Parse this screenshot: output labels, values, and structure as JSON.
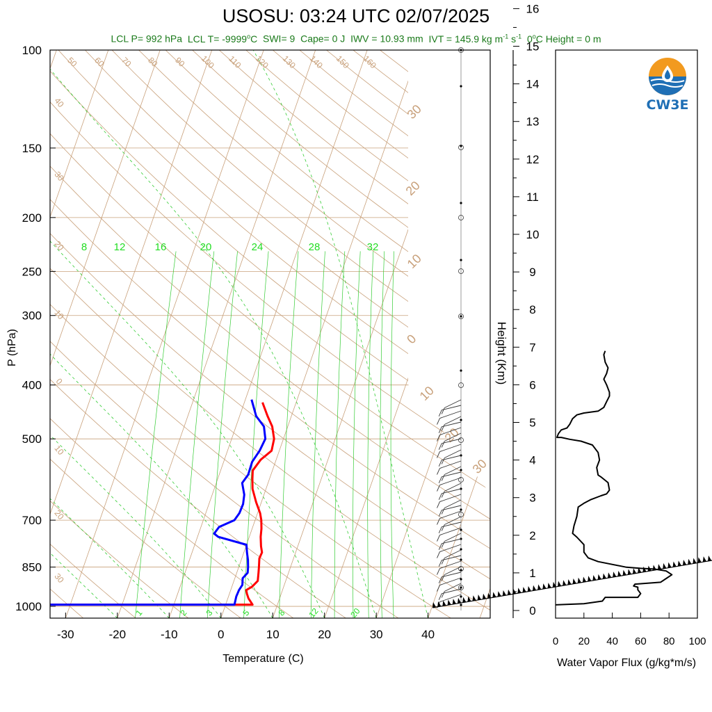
{
  "header": {
    "title": "USOSU: 03:24 UTC 02/07/2025",
    "lcl_p": "LCL P= 992 hPa",
    "lcl_t_prefix": "LCL T= -9999",
    "lcl_t_unit": "C",
    "swi": "SWI= 9",
    "cape": "Cape= 0 J",
    "iwv": "IWV = 10.93 mm",
    "ivt_prefix": "IVT = 145.9 kg m",
    "ivt_sup1": "-1",
    "ivt_mid": " s",
    "ivt_sup2": "-1",
    "zero_height": "0",
    "zero_height_rest": "C Height = 0 m"
  },
  "logo": {
    "text": "CW3E",
    "icon": "water-drop-sun-logo-icon",
    "colors": {
      "sun": "#f29a1f",
      "water": "#1f6fb5"
    }
  },
  "colors": {
    "temperature": "#ff0000",
    "dewpoint": "#0000ff",
    "isotherm": "#c8a07a",
    "mixing_ratio": "#33cc33",
    "subtitle": "#1a7a1a"
  },
  "chart_data": [
    {
      "type": "line",
      "subtype": "skew-t",
      "xlabel": "Temperature (C)",
      "ylabel": "P (hPa)",
      "xlim": [
        -33,
        52
      ],
      "ylim": [
        1050,
        100
      ],
      "yscale": "log",
      "x_ticks": [
        "-30",
        "-20",
        "-10",
        "0",
        "10",
        "20",
        "30",
        "40"
      ],
      "y_ticks": [
        "100",
        "150",
        "200",
        "250",
        "300",
        "400",
        "500",
        "700",
        "850",
        "1000"
      ],
      "dry_adiabat_labels": [
        "50",
        "60",
        "70",
        "80",
        "90",
        "100",
        "110",
        "120",
        "130",
        "140",
        "150",
        "160"
      ],
      "skewed_isotherm_labels": [
        "40",
        "30",
        "20",
        "10",
        "0",
        "10",
        "20",
        "30"
      ],
      "right_labels": [
        "30",
        "20",
        "10",
        "0",
        "10",
        "20",
        "30"
      ],
      "mixing_ratio_top_labels": [
        "8",
        "12",
        "16",
        "20",
        "24",
        "28",
        "32"
      ],
      "mixing_ratio_bottom_labels": [
        "1",
        "2",
        "3",
        "5",
        "8",
        "12",
        "20"
      ],
      "series": [
        {
          "name": "temperature",
          "points": [
            [
              -35.0,
              993
            ],
            [
              5.2,
              993
            ],
            [
              4.0,
              968
            ],
            [
              3.4,
              950
            ],
            [
              3.0,
              935
            ],
            [
              3.9,
              922
            ],
            [
              4.6,
              900
            ],
            [
              4.2,
              870
            ],
            [
              3.9,
              850
            ],
            [
              3.4,
              820
            ],
            [
              3.5,
              800
            ],
            [
              2.9,
              780
            ],
            [
              2.2,
              750
            ],
            [
              1.8,
              725
            ],
            [
              1.2,
              700
            ],
            [
              0.5,
              680
            ],
            [
              -1.0,
              650
            ],
            [
              -2.6,
              615
            ],
            [
              -3.3,
              590
            ],
            [
              -3.8,
              570
            ],
            [
              -3.0,
              545
            ],
            [
              -1.5,
              525
            ],
            [
              -1.8,
              500
            ],
            [
              -3.0,
              475
            ],
            [
              -4.6,
              455
            ],
            [
              -6.5,
              430
            ]
          ]
        },
        {
          "name": "dewpoint",
          "points": [
            [
              -35.0,
              993
            ],
            [
              1.7,
              993
            ],
            [
              1.5,
              960
            ],
            [
              1.6,
              935
            ],
            [
              1.9,
              915
            ],
            [
              1.5,
              890
            ],
            [
              2.1,
              870
            ],
            [
              1.8,
              850
            ],
            [
              1.3,
              825
            ],
            [
              0.6,
              800
            ],
            [
              0.0,
              775
            ],
            [
              -6.0,
              750
            ],
            [
              -7.0,
              740
            ],
            [
              -6.5,
              720
            ],
            [
              -4.0,
              700
            ],
            [
              -3.5,
              680
            ],
            [
              -3.4,
              655
            ],
            [
              -3.8,
              630
            ],
            [
              -5.0,
              600
            ],
            [
              -4.4,
              580
            ],
            [
              -4.5,
              550
            ],
            [
              -3.8,
              525
            ],
            [
              -3.5,
              500
            ],
            [
              -4.6,
              475
            ],
            [
              -6.8,
              455
            ],
            [
              -8.8,
              425
            ]
          ]
        }
      ]
    },
    {
      "type": "line",
      "subtype": "wind-profile",
      "ylabel": "Height (Km)",
      "ylim": [
        -0.2,
        16.5
      ],
      "y_ticks": [
        "0",
        "1",
        "2",
        "3",
        "4",
        "5",
        "6",
        "7",
        "8",
        "9",
        "10",
        "11",
        "12",
        "13",
        "14",
        "15",
        "16"
      ]
    },
    {
      "type": "line",
      "xlabel": "Water Vapor Flux (g/kg*m/s)",
      "xlim": [
        0,
        100
      ],
      "ylim": [
        -0.2,
        16.5
      ],
      "x_ticks": [
        "0",
        "20",
        "40",
        "60",
        "80",
        "100"
      ],
      "series": [
        {
          "name": "water_vapor_flux",
          "points": [
            [
              0,
              0.15
            ],
            [
              20,
              0.18
            ],
            [
              33,
              0.25
            ],
            [
              35,
              0.35
            ],
            [
              58,
              0.35
            ],
            [
              60,
              0.45
            ],
            [
              58,
              0.55
            ],
            [
              58,
              0.62
            ],
            [
              55,
              0.65
            ],
            [
              56,
              0.7
            ],
            [
              74,
              0.75
            ],
            [
              78,
              0.85
            ],
            [
              82,
              0.95
            ],
            [
              78,
              1.05
            ],
            [
              70,
              1.1
            ],
            [
              60,
              1.12
            ],
            [
              50,
              1.15
            ],
            [
              30,
              1.3
            ],
            [
              23,
              1.4
            ],
            [
              20,
              1.55
            ],
            [
              20,
              1.75
            ],
            [
              15,
              1.95
            ],
            [
              12,
              2.05
            ],
            [
              13,
              2.25
            ],
            [
              15,
              2.5
            ],
            [
              16,
              2.75
            ],
            [
              20,
              2.85
            ],
            [
              25,
              2.95
            ],
            [
              32,
              3.05
            ],
            [
              36,
              3.1
            ],
            [
              38,
              3.2
            ],
            [
              37,
              3.4
            ],
            [
              32,
              3.55
            ],
            [
              30,
              3.6
            ],
            [
              29,
              3.8
            ],
            [
              31,
              4.0
            ],
            [
              30,
              4.2
            ],
            [
              26,
              4.4
            ],
            [
              18,
              4.5
            ],
            [
              10,
              4.55
            ],
            [
              4,
              4.6
            ],
            [
              1,
              4.6
            ],
            [
              2,
              4.7
            ],
            [
              4,
              4.8
            ],
            [
              8,
              4.85
            ],
            [
              10,
              4.95
            ],
            [
              12,
              5.1
            ],
            [
              15,
              5.2
            ],
            [
              20,
              5.25
            ],
            [
              30,
              5.3
            ],
            [
              34,
              5.4
            ],
            [
              36,
              5.55
            ],
            [
              38,
              5.7
            ],
            [
              38,
              5.8
            ],
            [
              36,
              6.0
            ],
            [
              34,
              6.15
            ],
            [
              36,
              6.3
            ],
            [
              37,
              6.45
            ],
            [
              35,
              6.6
            ],
            [
              34,
              6.8
            ],
            [
              35,
              6.9
            ]
          ]
        }
      ]
    }
  ]
}
